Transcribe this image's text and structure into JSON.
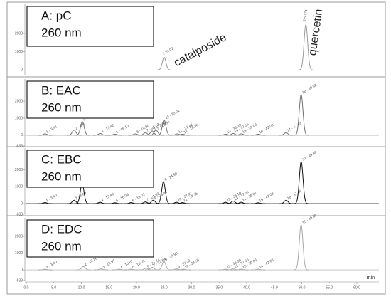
{
  "chart_data": [
    {
      "type": "line",
      "title": "A: pC",
      "subtitle": "260 nm",
      "color": "#9a9a9a",
      "xlim": [
        -2,
        64
      ],
      "ylim": [
        -300,
        3600
      ],
      "yticks": [
        0,
        1000,
        2000
      ],
      "annotations": [
        {
          "text": "catalposide"
        },
        {
          "text": "quercetin"
        }
      ],
      "peaks": [
        {
          "x": 25.02,
          "height": 700,
          "label": "1-25.02"
        },
        {
          "x": 50.74,
          "height": 2500,
          "label": "2-50.74"
        }
      ]
    },
    {
      "type": "line",
      "title": "B: EAC",
      "subtitle": "260 nm",
      "color": "#707070",
      "xlim": [
        -2,
        64
      ],
      "ylim": [
        -633,
        3300
      ],
      "yticks": [
        -633,
        0,
        1000,
        2000
      ],
      "peaks": [
        {
          "x": 3.41,
          "height": 80,
          "label": "1 - 3.41"
        },
        {
          "x": 8.67,
          "height": 300,
          "label": "2 - 8.67"
        },
        {
          "x": 10.18,
          "height": 800,
          "label": "3 - 10.18"
        },
        {
          "x": 13.42,
          "height": 100,
          "label": "4 - 13.42"
        },
        {
          "x": 16.1,
          "height": 60,
          "label": "5 - 16.10"
        },
        {
          "x": 19.8,
          "height": 80,
          "label": "6 - 19.80"
        },
        {
          "x": 21.63,
          "height": 150,
          "label": "7 - 21.63"
        },
        {
          "x": 22.84,
          "height": 250,
          "label": "8 - 22.84"
        },
        {
          "x": 23.54,
          "height": 300,
          "label": "9 - 23.54"
        },
        {
          "x": 25.01,
          "height": 900,
          "label": "10 - 25.01"
        },
        {
          "x": 27.42,
          "height": 80,
          "label": "11 - 27.42"
        },
        {
          "x": 28.36,
          "height": 60,
          "label": "12 - 28.36"
        },
        {
          "x": 36.2,
          "height": 60,
          "label": "13 - 36.20"
        },
        {
          "x": 37.56,
          "height": 100,
          "label": "14 - 37.56"
        },
        {
          "x": 39.03,
          "height": 80,
          "label": "15 - 39.03"
        },
        {
          "x": 42.08,
          "height": 60,
          "label": "16 - 42.08"
        },
        {
          "x": 47.14,
          "height": 150,
          "label": "17 - 47.14"
        },
        {
          "x": 49.88,
          "height": 2400,
          "label": "18 - 49.88"
        }
      ]
    },
    {
      "type": "line",
      "title": "C: EBC",
      "subtitle": "260 nm",
      "color": "#111111",
      "xlim": [
        -2,
        64
      ],
      "ylim": [
        -633,
        3300
      ],
      "yticks": [
        -633,
        0,
        1000,
        2000
      ],
      "peaks": [
        {
          "x": 3.4,
          "height": 60,
          "label": "1 - 3.40"
        },
        {
          "x": 8.69,
          "height": 200,
          "label": "2 - 8.69"
        },
        {
          "x": 10.14,
          "height": 1200,
          "label": "3 - 10.14"
        },
        {
          "x": 13.4,
          "height": 80,
          "label": "4 - 13.40"
        },
        {
          "x": 16.08,
          "height": 50,
          "label": "5 - 16.08"
        },
        {
          "x": 19.02,
          "height": 60,
          "label": "6 - 19.02"
        },
        {
          "x": 21.63,
          "height": 100,
          "label": "7 - 21.63"
        },
        {
          "x": 23.04,
          "height": 200,
          "label": "8 - 23.04"
        },
        {
          "x": 24.9,
          "height": 1300,
          "label": "9 - 24.90"
        },
        {
          "x": 27.27,
          "height": 80,
          "label": "10 - 27.27"
        },
        {
          "x": 28.35,
          "height": 60,
          "label": "11 - 28.35"
        },
        {
          "x": 36.19,
          "height": 80,
          "label": "12 - 36.19"
        },
        {
          "x": 37.56,
          "height": 150,
          "label": "13 - 37.56"
        },
        {
          "x": 39.01,
          "height": 80,
          "label": "14 - 39.01"
        },
        {
          "x": 42.08,
          "height": 50,
          "label": "15 - 42.08"
        },
        {
          "x": 47.16,
          "height": 200,
          "label": "16 - 47.16"
        },
        {
          "x": 49.89,
          "height": 2500,
          "label": "17 - 49.89"
        }
      ]
    },
    {
      "type": "line",
      "title": "D: EDC",
      "subtitle": "260 nm",
      "color": "#a8a8a8",
      "xlim": [
        -2,
        64
      ],
      "ylim": [
        -633,
        3100
      ],
      "yticks": [
        -633,
        0,
        1000,
        2000
      ],
      "xticks": [
        {
          "value": 0,
          "label": "0.0"
        },
        {
          "value": 10,
          "label": "10.0"
        },
        {
          "value": 20,
          "label": "20.0"
        },
        {
          "value": 30,
          "label": "30.0"
        },
        {
          "value": 40,
          "label": "40.0"
        },
        {
          "value": 50,
          "label": "50.0"
        },
        {
          "value": 60,
          "label": "60.0"
        }
      ],
      "xminor": [
        {
          "value": 5,
          "label": "5.0"
        },
        {
          "value": 15,
          "label": "15.0"
        },
        {
          "value": 25,
          "label": "25.0"
        },
        {
          "value": 35,
          "label": "35.0"
        },
        {
          "value": 45,
          "label": "45.0"
        },
        {
          "value": 55,
          "label": "55.0"
        }
      ],
      "xlabel": "min",
      "peaks": [
        {
          "x": 3.4,
          "height": 40,
          "label": "1 - 3.40"
        },
        {
          "x": 10.36,
          "height": 200,
          "label": "2 - 10.36"
        },
        {
          "x": 13.57,
          "height": 60,
          "label": "3 - 13.57"
        },
        {
          "x": 16.87,
          "height": 40,
          "label": "4 - 16.87"
        },
        {
          "x": 19.02,
          "height": 40,
          "label": "5 - 19.02"
        },
        {
          "x": 21.74,
          "height": 100,
          "label": "6 - 21.74"
        },
        {
          "x": 22.84,
          "height": 150,
          "label": "7 - 22.84"
        },
        {
          "x": 24.98,
          "height": 500,
          "label": "8 - 24.98"
        },
        {
          "x": 27.28,
          "height": 60,
          "label": "9 - 27.28"
        },
        {
          "x": 28.55,
          "height": 40,
          "label": "10 - 28.55"
        },
        {
          "x": 36.2,
          "height": 40,
          "label": "11 - 36.20"
        },
        {
          "x": 37.56,
          "height": 60,
          "label": "12 - 37.56"
        },
        {
          "x": 39.03,
          "height": 40,
          "label": "13 - 39.03"
        },
        {
          "x": 42.08,
          "height": 40,
          "label": "14 - 42.08"
        },
        {
          "x": 49.88,
          "height": 2700,
          "label": "15 - 49.88"
        }
      ]
    }
  ]
}
